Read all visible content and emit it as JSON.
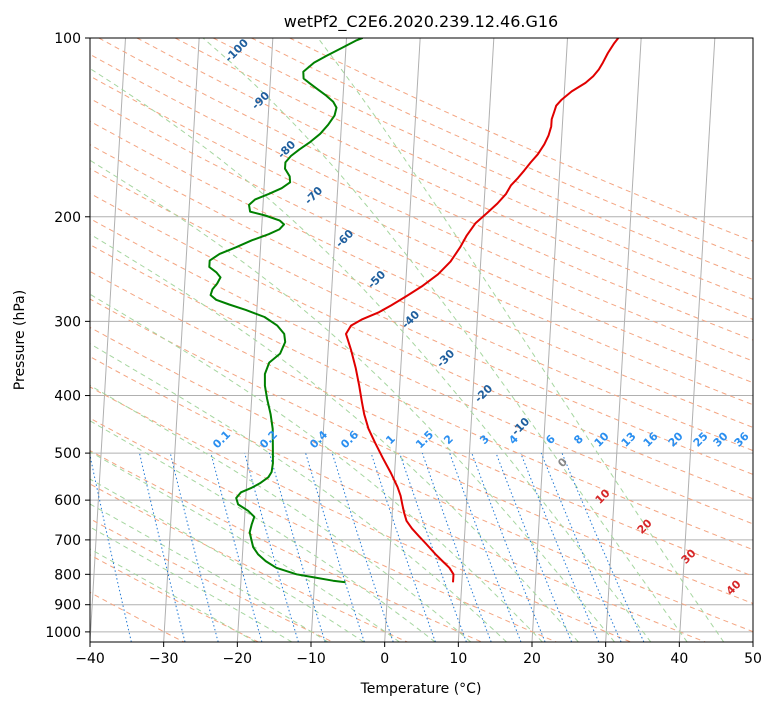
{
  "chart_data": {
    "type": "line",
    "title": "wetPf2_C2E6.2020.239.12.46.G16",
    "xlabel": "Temperature (°C)",
    "ylabel": "Pressure (hPa)",
    "xlim": [
      -40,
      50
    ],
    "ylim": [
      1040,
      100
    ],
    "y_scale": "log",
    "grid": true,
    "x_ticks": [
      -40,
      -30,
      -20,
      -10,
      0,
      10,
      20,
      30,
      40,
      50
    ],
    "y_ticks": [
      100,
      200,
      300,
      400,
      500,
      600,
      700,
      800,
      900,
      1000
    ],
    "series": [
      {
        "color": "#e00000",
        "points": [
          [
            8.8,
            825
          ],
          [
            8.8,
            800
          ],
          [
            8.2,
            780
          ],
          [
            7.2,
            760
          ],
          [
            6.2,
            740
          ],
          [
            4.8,
            710
          ],
          [
            3.8,
            690
          ],
          [
            2.8,
            670
          ],
          [
            2.0,
            650
          ],
          [
            1.6,
            630
          ],
          [
            1.3,
            610
          ],
          [
            1.0,
            590
          ],
          [
            0.5,
            570
          ],
          [
            -0.5,
            540
          ],
          [
            -1.7,
            510
          ],
          [
            -2.9,
            480
          ],
          [
            -3.9,
            455
          ],
          [
            -4.6,
            430
          ],
          [
            -5.0,
            410
          ],
          [
            -5.5,
            385
          ],
          [
            -6.1,
            360
          ],
          [
            -6.9,
            335
          ],
          [
            -7.7,
            315
          ],
          [
            -7.1,
            305
          ],
          [
            -5.7,
            298
          ],
          [
            -3.5,
            290
          ],
          [
            -1.8,
            282
          ],
          [
            0.2,
            272
          ],
          [
            2.2,
            262
          ],
          [
            4.3,
            250
          ],
          [
            5.9,
            238
          ],
          [
            7.1,
            225
          ],
          [
            7.9,
            215
          ],
          [
            9.0,
            205
          ],
          [
            10.5,
            197
          ],
          [
            11.8,
            190
          ],
          [
            12.9,
            183
          ],
          [
            13.5,
            177
          ],
          [
            14.4,
            172
          ],
          [
            15.2,
            167
          ],
          [
            16.0,
            162
          ],
          [
            16.9,
            157
          ],
          [
            17.7,
            151
          ],
          [
            18.2,
            146
          ],
          [
            18.5,
            141
          ],
          [
            18.5,
            137
          ],
          [
            18.8,
            133
          ],
          [
            19.0,
            130
          ],
          [
            19.7,
            127
          ],
          [
            21.0,
            123
          ],
          [
            22.8,
            119
          ],
          [
            23.8,
            116
          ],
          [
            24.5,
            113
          ],
          [
            25.0,
            110
          ],
          [
            25.6,
            106
          ],
          [
            26.4,
            102
          ],
          [
            26.9,
            100
          ]
        ]
      },
      {
        "color": "#008000",
        "points": [
          [
            -5.8,
            825
          ],
          [
            -7.5,
            820
          ],
          [
            -10.0,
            810
          ],
          [
            -12.5,
            800
          ],
          [
            -15.3,
            780
          ],
          [
            -16.8,
            760
          ],
          [
            -17.9,
            740
          ],
          [
            -18.6,
            720
          ],
          [
            -18.9,
            700
          ],
          [
            -19.2,
            680
          ],
          [
            -19.0,
            660
          ],
          [
            -18.7,
            640
          ],
          [
            -19.6,
            625
          ],
          [
            -21.0,
            610
          ],
          [
            -21.3,
            595
          ],
          [
            -20.7,
            582
          ],
          [
            -19.3,
            572
          ],
          [
            -18.2,
            562
          ],
          [
            -17.1,
            549
          ],
          [
            -16.7,
            538
          ],
          [
            -16.6,
            520
          ],
          [
            -16.7,
            495
          ],
          [
            -16.8,
            475
          ],
          [
            -16.9,
            455
          ],
          [
            -17.3,
            430
          ],
          [
            -17.9,
            405
          ],
          [
            -18.3,
            385
          ],
          [
            -18.4,
            368
          ],
          [
            -17.9,
            352
          ],
          [
            -16.5,
            340
          ],
          [
            -15.9,
            325
          ],
          [
            -16.1,
            315
          ],
          [
            -17.1,
            305
          ],
          [
            -18.9,
            295
          ],
          [
            -21.5,
            287
          ],
          [
            -23.8,
            281
          ],
          [
            -25.6,
            276
          ],
          [
            -26.4,
            271
          ],
          [
            -26.2,
            265
          ],
          [
            -25.6,
            259
          ],
          [
            -25.2,
            253
          ],
          [
            -25.8,
            248
          ],
          [
            -26.8,
            243
          ],
          [
            -26.8,
            237
          ],
          [
            -25.5,
            231
          ],
          [
            -23.3,
            225
          ],
          [
            -21.2,
            219
          ],
          [
            -19.0,
            214
          ],
          [
            -17.6,
            210
          ],
          [
            -17.0,
            206
          ],
          [
            -17.6,
            203
          ],
          [
            -19.6,
            199
          ],
          [
            -21.7,
            196
          ],
          [
            -21.9,
            191
          ],
          [
            -21.1,
            187
          ],
          [
            -19.3,
            183
          ],
          [
            -17.6,
            179
          ],
          [
            -16.5,
            175
          ],
          [
            -16.6,
            171
          ],
          [
            -17.3,
            166
          ],
          [
            -17.3,
            162
          ],
          [
            -16.6,
            158
          ],
          [
            -15.5,
            154
          ],
          [
            -14.2,
            150
          ],
          [
            -12.8,
            145
          ],
          [
            -11.8,
            140
          ],
          [
            -11.0,
            135
          ],
          [
            -10.8,
            131
          ],
          [
            -11.3,
            128
          ],
          [
            -12.3,
            125
          ],
          [
            -13.5,
            122
          ],
          [
            -14.7,
            119
          ],
          [
            -15.5,
            117
          ],
          [
            -15.6,
            114
          ],
          [
            -14.2,
            110
          ],
          [
            -12.5,
            107
          ],
          [
            -10.6,
            104
          ],
          [
            -8.7,
            101
          ],
          [
            -7.8,
            100
          ]
        ]
      }
    ],
    "dry_adiabat_labels": [
      "-100",
      "-90",
      "-80",
      "-70",
      "-60",
      "-50",
      "-40",
      "-30",
      "-20",
      "-10"
    ],
    "mixing_ratio_labels": [
      "0.1",
      "0.2",
      "0.4",
      "0.6",
      "1",
      "1.5",
      "2",
      "3",
      "4",
      "6",
      "8",
      "10",
      "13",
      "16",
      "20",
      "25",
      "30",
      "36"
    ],
    "moist_adiabat_labels": [
      "0",
      "10",
      "20",
      "30",
      "40"
    ],
    "colors": {
      "isotherm": "#b0b0b0",
      "isobar": "#b0b0b0",
      "dry_adiabat": "#f4a582",
      "moist_adiabat": "#a6d6a0",
      "mixing_ratio": "#1f77d4",
      "dry_adiabat_label": "#1f5f9e",
      "mixing_ratio_label": "#2a8ff0",
      "moist_adiabat_label": "#d62728",
      "zero_label": "#888888"
    }
  }
}
